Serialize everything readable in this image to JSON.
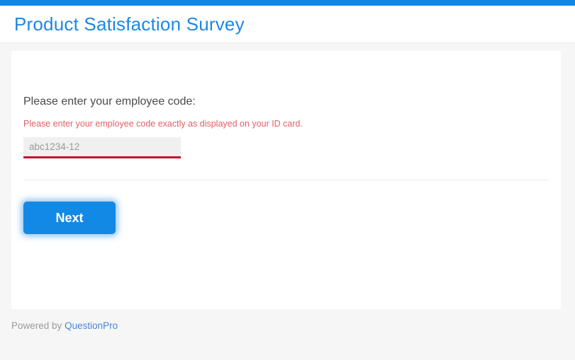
{
  "header": {
    "title": "Product Satisfaction Survey"
  },
  "survey": {
    "question_label": "Please enter your employee code:",
    "validation_hint": "Please enter your employee code exactly as displayed on your ID card.",
    "input_value": "",
    "input_placeholder": "abc1234-12",
    "next_button_label": "Next"
  },
  "footer": {
    "powered_by_label": "Powered by",
    "brand_link_label": "QuestionPro"
  },
  "colors": {
    "accent_blue": "#1389e6",
    "title_blue": "#1d87e5",
    "input_underline_red": "#c30d2e",
    "hint_red": "#e25f66",
    "link_blue": "#4a86d8",
    "background_gray": "#f6f6f6"
  }
}
